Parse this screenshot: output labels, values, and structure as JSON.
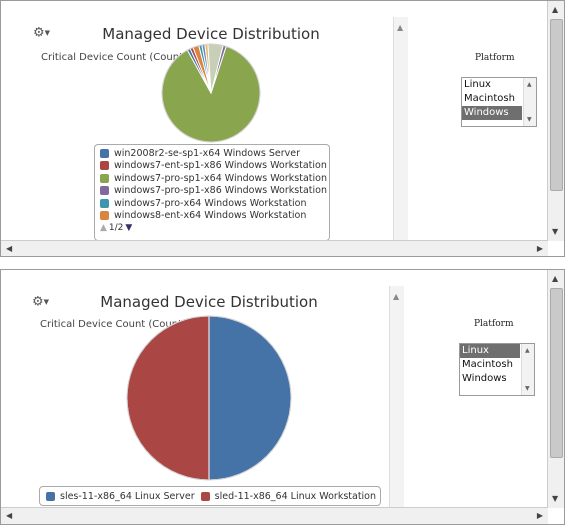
{
  "panels": [
    {
      "id": "top",
      "title": "Managed Device Distribution",
      "subtitle": "Critical Device Count (Count)",
      "platform_label": "Platform",
      "platform_options": [
        "Linux",
        "Macintosh",
        "Windows"
      ],
      "platform_selected": "Windows",
      "legend_items": [
        {
          "label": "win2008r2-se-sp1-x64 Windows Server",
          "color": "#4572a7"
        },
        {
          "label": "windows7-ent-sp1-x86 Windows Workstation",
          "color": "#aa4643"
        },
        {
          "label": "windows7-pro-sp1-x64 Windows Workstation",
          "color": "#89a54e"
        },
        {
          "label": "windows7-pro-sp1-x86 Windows Workstation",
          "color": "#80699b"
        },
        {
          "label": "windows7-pro-x64 Windows Workstation",
          "color": "#3d96ae"
        },
        {
          "label": "windows8-ent-x64 Windows Workstation",
          "color": "#db843d"
        }
      ],
      "legend_page": "1/2"
    },
    {
      "id": "bottom",
      "title": "Managed Device Distribution",
      "subtitle": "Critical Device Count (Count)",
      "platform_label": "Platform",
      "platform_options": [
        "Linux",
        "Macintosh",
        "Windows"
      ],
      "platform_selected": "Linux",
      "legend_items": [
        {
          "label": "sles-11-x86_64 Linux Server",
          "color": "#4572a7"
        },
        {
          "label": "sled-11-x86_64 Linux Workstation",
          "color": "#aa4643"
        }
      ]
    }
  ],
  "chart_data": [
    {
      "type": "pie",
      "title": "Managed Device Distribution",
      "subtitle": "Critical Device Count (Count)",
      "slices": [
        {
          "name": "windows7-pro-sp1-x64 Windows Workstation",
          "value": 87,
          "color": "#89a54e"
        },
        {
          "name": "win2008r2-se-sp1-x64 Windows Server",
          "value": 1,
          "color": "#4572a7"
        },
        {
          "name": "windows7-ent-sp1-x86 Windows Workstation",
          "value": 1,
          "color": "#aa4643"
        },
        {
          "name": "windows8-ent-x64 Windows Workstation",
          "value": 2,
          "color": "#db843d"
        },
        {
          "name": "windows7-pro-x64 Windows Workstation",
          "value": 1,
          "color": "#3d96ae"
        },
        {
          "name": "",
          "value": 1,
          "color": "#6c8fbf"
        },
        {
          "name": "",
          "value": 1,
          "color": "#e8b86a"
        },
        {
          "name": "",
          "value": 5,
          "color": "#c7cfb7"
        },
        {
          "name": "windows7-pro-sp1-x86 Windows Workstation",
          "value": 1,
          "color": "#80699b"
        }
      ],
      "legend": "bottom"
    },
    {
      "type": "pie",
      "title": "Managed Device Distribution",
      "subtitle": "Critical Device Count (Count)",
      "slices": [
        {
          "name": "sles-11-x86_64 Linux Server",
          "value": 1,
          "color": "#4572a7"
        },
        {
          "name": "sled-11-x86_64 Linux Workstation",
          "value": 1,
          "color": "#aa4643"
        }
      ],
      "legend": "bottom"
    }
  ]
}
